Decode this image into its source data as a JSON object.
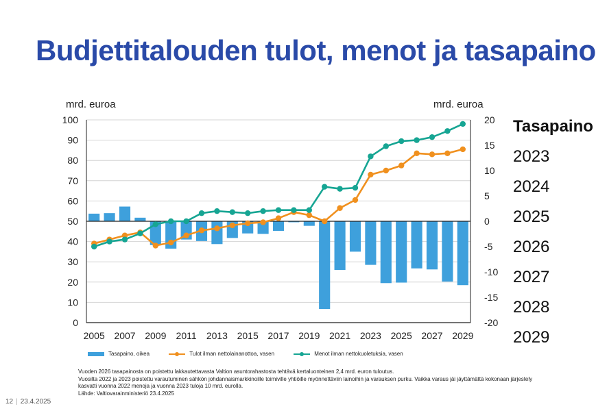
{
  "title": "Budjettitalouden tulot, menot ja tasapaino",
  "colors": {
    "title": "#2a4aa8",
    "bars": "#3ea0dc",
    "tulot": "#f0901e",
    "menot": "#16a593"
  },
  "chart_data": {
    "type": "bar+line",
    "left_axis_label": "mrd. euroa",
    "right_axis_label": "mrd. euroa",
    "left_ylim": [
      0,
      100
    ],
    "right_ylim": [
      -20,
      20
    ],
    "left_ticks": [
      0,
      10,
      20,
      30,
      40,
      50,
      60,
      70,
      80,
      90,
      100
    ],
    "right_ticks": [
      -20,
      -15,
      -10,
      -5,
      0,
      5,
      10,
      15,
      20
    ],
    "x_ticks": [
      "2005",
      "2007",
      "2009",
      "2011",
      "2013",
      "2015",
      "2017",
      "2019",
      "2021",
      "2023",
      "2025",
      "2027",
      "2029"
    ],
    "years": [
      2005,
      2006,
      2007,
      2008,
      2009,
      2010,
      2011,
      2012,
      2013,
      2014,
      2015,
      2016,
      2017,
      2018,
      2019,
      2020,
      2021,
      2022,
      2023,
      2024,
      2025,
      2026,
      2027,
      2028,
      2029
    ],
    "series": [
      {
        "name": "Tasapaino, oikea",
        "kind": "bar",
        "axis": "right",
        "values": [
          1.5,
          1.6,
          2.9,
          0.7,
          -4.7,
          -5.4,
          -3.6,
          -3.9,
          -4.5,
          -3.3,
          -2.4,
          -2.5,
          -1.9,
          -0.2,
          -0.9,
          -17.3,
          -9.6,
          -6.0,
          -8.6,
          -12.2,
          -12.1,
          -9.3,
          -9.5,
          -11.9,
          -12.6
        ]
      },
      {
        "name": "Tulot ilman nettolainanottoa, vasen",
        "kind": "line",
        "axis": "left",
        "values": [
          39.0,
          41.0,
          43.0,
          44.5,
          38.0,
          39.5,
          43.0,
          45.5,
          46.5,
          48.0,
          49.0,
          49.5,
          51.5,
          54.5,
          53.0,
          50.0,
          56.5,
          60.5,
          73.0,
          75.0,
          77.5,
          83.5,
          83.0,
          83.5,
          85.5
        ]
      },
      {
        "name": "Menot ilman nettokuoletuksia, vasen",
        "kind": "line",
        "axis": "left",
        "values": [
          37.5,
          40.0,
          41.0,
          44.0,
          48.5,
          50.0,
          50.0,
          54.0,
          55.0,
          54.5,
          54.0,
          55.0,
          55.5,
          55.5,
          55.5,
          67.0,
          66.0,
          66.5,
          82.0,
          87.0,
          89.5,
          90.0,
          91.5,
          94.5,
          98.0
        ]
      }
    ]
  },
  "side_table": {
    "header": "Tasapaino",
    "rows": [
      "2023",
      "2024",
      "2025",
      "2026",
      "2027",
      "2028",
      "2029"
    ]
  },
  "notes": [
    "Vuoden 2026 tasapainosta on poistettu lakkautettavasta Valtion asuntorahastosta tehtävä kertaluonteinen 2,4 mrd. euron tuloutus.",
    "Vuosilta 2022 ja 2023 poistettu varautuminen sähkön johdannaismarkkinoille toimiville yhtiöille myönnettäviin lainoihin ja varauksen purku. Vaikka varaus jäi jäyttämättä kokonaan järjestely kasvatti vuonna 2022 menoja ja vuonna 2023 tuloja 10 mrd. eurolla.",
    "Lähde: Valtiovarainministeriö 23.4.2025"
  ],
  "footer": {
    "page": "12",
    "date": "23.4.2025"
  }
}
